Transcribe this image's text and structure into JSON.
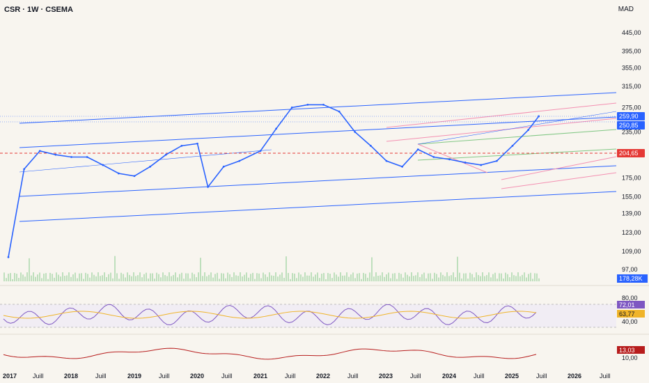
{
  "header": {
    "symbol_line": "CSR · 1W · CSEMA",
    "currency": "MAD"
  },
  "chart_data": {
    "type": "line",
    "title": "CSR · 1W · CSEMA",
    "scale": "log",
    "price_axis_ticks": [
      "445,00",
      "395,00",
      "355,00",
      "315,00",
      "275,00",
      "235,00",
      "175,00",
      "155,00",
      "139,00",
      "123,00",
      "109,00",
      "97,00"
    ],
    "time_axis_ticks": [
      "2017",
      "Juill",
      "2018",
      "Juill",
      "2019",
      "Juill",
      "2020",
      "Juill",
      "2021",
      "Juill",
      "2022",
      "Juill",
      "2023",
      "Juill",
      "2024",
      "Juill",
      "2025",
      "Juill",
      "2026",
      "Juill"
    ],
    "price_badges": [
      {
        "label": "259,90",
        "color": "#2962ff"
      },
      {
        "label": "250,85",
        "color": "#2962ff"
      },
      {
        "label": "204,65",
        "color": "#e53935"
      }
    ],
    "price_series": {
      "name": "",
      "x": [
        "2017-01",
        "2017-04",
        "2017-07",
        "2017-10",
        "2018-01",
        "2018-04",
        "2018-07",
        "2018-10",
        "2019-01",
        "2019-04",
        "2019-07",
        "2019-10",
        "2020-01",
        "2020-03",
        "2020-06",
        "2020-09",
        "2021-01",
        "2021-04",
        "2021-07",
        "2021-10",
        "2022-01",
        "2022-04",
        "2022-07",
        "2022-10",
        "2023-01",
        "2023-04",
        "2023-07",
        "2023-10",
        "2024-01",
        "2024-04",
        "2024-07",
        "2024-10",
        "2025-01",
        "2025-04",
        "2025-06"
      ],
      "y": [
        105,
        185,
        208,
        203,
        200,
        200,
        190,
        180,
        177,
        188,
        203,
        215,
        218,
        165,
        188,
        195,
        208,
        240,
        275,
        280,
        280,
        268,
        235,
        215,
        195,
        188,
        210,
        200,
        197,
        193,
        190,
        195,
        215,
        238,
        260
      ]
    },
    "volume": {
      "last_label": "178,28K"
    },
    "rsi": {
      "ticks": [
        "80,00",
        "40,00"
      ],
      "rsi_label": "72,01",
      "signal_label": "63,77"
    },
    "bottom_indicator": {
      "label": "13,03",
      "tick": "10,00"
    },
    "colors": {
      "price": "#2962ff",
      "rsi": "#7e57c2",
      "signal": "#f0b429",
      "red": "#e53935"
    }
  }
}
